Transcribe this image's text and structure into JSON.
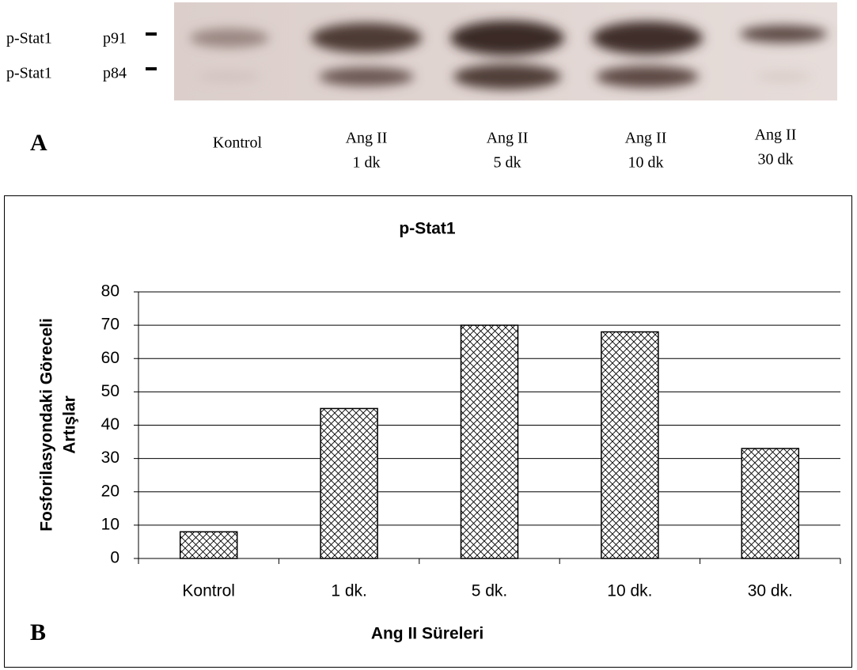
{
  "blot": {
    "rows": [
      {
        "protein": "p-Stat1",
        "band": "p91"
      },
      {
        "protein": "p-Stat1",
        "band": "p84"
      }
    ],
    "panel_label": "A",
    "lanes": [
      [
        "Kontrol"
      ],
      [
        "Ang II",
        "1 dk"
      ],
      [
        "Ang II",
        "5 dk"
      ],
      [
        "Ang II",
        "10 dk"
      ],
      [
        "Ang II",
        "30 dk"
      ]
    ]
  },
  "chart_data": {
    "type": "bar",
    "title": "p-Stat1",
    "panel_label": "B",
    "y_label": [
      "Fosforilasyondaki Göreceli",
      "Artışlar"
    ],
    "x_label": "Ang II Süreleri",
    "categories": [
      "Kontrol",
      "1 dk.",
      "5 dk.",
      "10 dk.",
      "30 dk."
    ],
    "values": [
      8,
      45,
      70,
      68,
      33
    ],
    "color": "#000000",
    "ylim": [
      0,
      80
    ],
    "yticks": [
      0,
      10,
      20,
      30,
      40,
      50,
      60,
      70,
      80
    ],
    "grid": true
  }
}
